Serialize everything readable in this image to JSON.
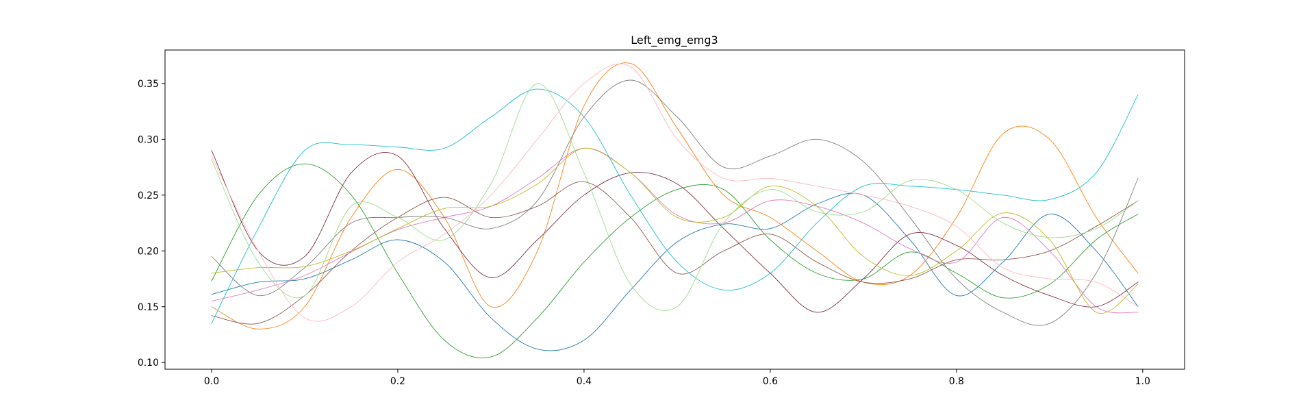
{
  "chart_data": {
    "type": "line",
    "title": "Left_emg_emg3",
    "xlabel": "",
    "ylabel": "",
    "xlim": [
      -0.05,
      1.045
    ],
    "ylim": [
      0.094,
      0.38
    ],
    "x_ticks": [
      0.0,
      0.2,
      0.4,
      0.6,
      0.8,
      1.0
    ],
    "x_tick_labels": [
      "0.0",
      "0.2",
      "0.4",
      "0.6",
      "0.8",
      "1.0"
    ],
    "y_ticks": [
      0.1,
      0.15,
      0.2,
      0.25,
      0.3,
      0.35
    ],
    "y_tick_labels": [
      "0.10",
      "0.15",
      "0.20",
      "0.25",
      "0.30",
      "0.35"
    ],
    "grid": false,
    "legend": "none",
    "x": [
      0.0,
      0.05,
      0.1,
      0.15,
      0.2,
      0.25,
      0.3,
      0.35,
      0.4,
      0.45,
      0.5,
      0.55,
      0.6,
      0.65,
      0.7,
      0.75,
      0.8,
      0.85,
      0.9,
      0.95,
      0.995
    ],
    "series": [
      {
        "color": "#1f77b4",
        "values": [
          0.161,
          0.172,
          0.175,
          0.192,
          0.21,
          0.19,
          0.14,
          0.112,
          0.12,
          0.165,
          0.208,
          0.224,
          0.22,
          0.242,
          0.25,
          0.21,
          0.16,
          0.19,
          0.233,
          0.2,
          0.15
        ]
      },
      {
        "color": "#ff7f0e",
        "values": [
          0.15,
          0.13,
          0.15,
          0.23,
          0.273,
          0.23,
          0.15,
          0.2,
          0.33,
          0.368,
          0.31,
          0.25,
          0.23,
          0.2,
          0.172,
          0.178,
          0.23,
          0.305,
          0.3,
          0.23,
          0.18
        ]
      },
      {
        "color": "#2ca02c",
        "values": [
          0.173,
          0.25,
          0.278,
          0.25,
          0.18,
          0.12,
          0.105,
          0.14,
          0.19,
          0.23,
          0.255,
          0.255,
          0.21,
          0.18,
          0.175,
          0.199,
          0.18,
          0.158,
          0.17,
          0.21,
          0.233
        ]
      },
      {
        "color": "#8c564b",
        "values": [
          0.142,
          0.135,
          0.16,
          0.2,
          0.23,
          0.248,
          0.23,
          0.24,
          0.262,
          0.23,
          0.18,
          0.2,
          0.215,
          0.19,
          0.172,
          0.175,
          0.192,
          0.192,
          0.2,
          0.222,
          0.245
        ]
      },
      {
        "color": "#7f3040",
        "values": [
          0.29,
          0.2,
          0.195,
          0.27,
          0.285,
          0.22,
          0.176,
          0.21,
          0.25,
          0.27,
          0.26,
          0.22,
          0.18,
          0.145,
          0.175,
          0.215,
          0.205,
          0.178,
          0.16,
          0.15,
          0.172
        ]
      },
      {
        "color": "#e377c2",
        "values": [
          0.155,
          0.165,
          0.178,
          0.199,
          0.219,
          0.23,
          0.24,
          0.265,
          0.292,
          0.27,
          0.232,
          0.225,
          0.245,
          0.24,
          0.225,
          0.202,
          0.19,
          0.23,
          0.2,
          0.15,
          0.145
        ]
      },
      {
        "color": "#7f7f7f",
        "values": [
          0.195,
          0.16,
          0.185,
          0.225,
          0.23,
          0.23,
          0.22,
          0.245,
          0.32,
          0.353,
          0.32,
          0.275,
          0.285,
          0.3,
          0.28,
          0.23,
          0.175,
          0.145,
          0.135,
          0.18,
          0.265
        ]
      },
      {
        "color": "#bcbd22",
        "values": [
          0.18,
          0.185,
          0.186,
          0.2,
          0.22,
          0.238,
          0.24,
          0.26,
          0.292,
          0.27,
          0.23,
          0.23,
          0.258,
          0.24,
          0.195,
          0.178,
          0.2,
          0.234,
          0.21,
          0.145,
          0.17
        ]
      },
      {
        "color": "#17becf",
        "values": [
          0.135,
          0.22,
          0.29,
          0.295,
          0.293,
          0.292,
          0.32,
          0.345,
          0.32,
          0.25,
          0.19,
          0.165,
          0.18,
          0.225,
          0.258,
          0.258,
          0.255,
          0.25,
          0.246,
          0.27,
          0.34
        ]
      },
      {
        "color": "#98df8a",
        "values": [
          0.282,
          0.19,
          0.16,
          0.24,
          0.23,
          0.21,
          0.26,
          0.35,
          0.27,
          0.17,
          0.15,
          0.225,
          0.255,
          0.235,
          0.235,
          0.263,
          0.255,
          0.225,
          0.212,
          0.22,
          0.245
        ]
      },
      {
        "color": "#ffb6c1",
        "values": [
          0.285,
          0.2,
          0.14,
          0.15,
          0.19,
          0.215,
          0.25,
          0.3,
          0.35,
          0.365,
          0.3,
          0.265,
          0.265,
          0.258,
          0.25,
          0.24,
          0.222,
          0.185,
          0.175,
          0.172,
          0.15
        ]
      }
    ]
  }
}
